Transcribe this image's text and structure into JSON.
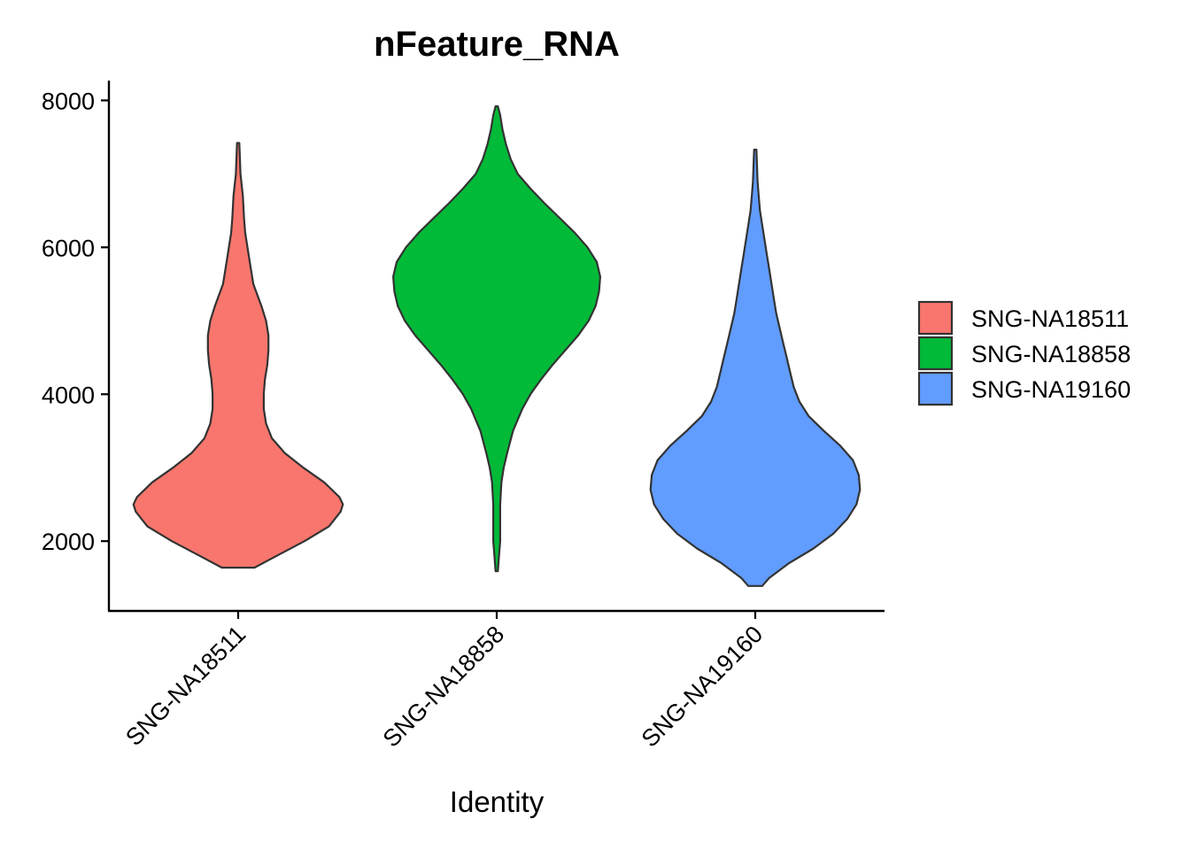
{
  "chart_data": {
    "type": "violin",
    "title": "nFeature_RNA",
    "xlabel": "Identity",
    "ylabel": "",
    "categories": [
      "SNG-NA18511",
      "SNG-NA18858",
      "SNG-NA19160"
    ],
    "y_ticks": [
      2000,
      4000,
      6000,
      8000
    ],
    "y_tick_labels": [
      "2000",
      "4000",
      "6000",
      "8000"
    ],
    "ylim": [
      1050,
      8270
    ],
    "grid": false,
    "legend": {
      "placement": "right",
      "entries": [
        "SNG-NA18511",
        "SNG-NA18858",
        "SNG-NA19160"
      ]
    },
    "series": [
      {
        "category": "SNG-NA18511",
        "color": "#F8766D",
        "min": 1640,
        "max": 7420,
        "density": [
          [
            1640,
            0.14
          ],
          [
            1800,
            0.33
          ],
          [
            2000,
            0.57
          ],
          [
            2200,
            0.78
          ],
          [
            2400,
            0.88
          ],
          [
            2500,
            0.9
          ],
          [
            2600,
            0.87
          ],
          [
            2800,
            0.74
          ],
          [
            3000,
            0.56
          ],
          [
            3200,
            0.4
          ],
          [
            3400,
            0.29
          ],
          [
            3600,
            0.24
          ],
          [
            3800,
            0.22
          ],
          [
            4000,
            0.22
          ],
          [
            4200,
            0.23
          ],
          [
            4400,
            0.25
          ],
          [
            4600,
            0.26
          ],
          [
            4800,
            0.26
          ],
          [
            5000,
            0.24
          ],
          [
            5200,
            0.2
          ],
          [
            5500,
            0.13
          ],
          [
            5800,
            0.1
          ],
          [
            6000,
            0.08
          ],
          [
            6200,
            0.06
          ],
          [
            6400,
            0.05
          ],
          [
            6700,
            0.04
          ],
          [
            7000,
            0.02
          ],
          [
            7200,
            0.015
          ],
          [
            7420,
            0.01
          ]
        ]
      },
      {
        "category": "SNG-NA18858",
        "color": "#00BA38",
        "min": 1590,
        "max": 7920,
        "density": [
          [
            1590,
            0.01
          ],
          [
            1800,
            0.02
          ],
          [
            2000,
            0.03
          ],
          [
            2200,
            0.03
          ],
          [
            2500,
            0.03
          ],
          [
            2800,
            0.04
          ],
          [
            3000,
            0.06
          ],
          [
            3200,
            0.09
          ],
          [
            3500,
            0.14
          ],
          [
            3800,
            0.22
          ],
          [
            4000,
            0.29
          ],
          [
            4200,
            0.38
          ],
          [
            4400,
            0.48
          ],
          [
            4600,
            0.59
          ],
          [
            4800,
            0.7
          ],
          [
            5000,
            0.79
          ],
          [
            5200,
            0.85
          ],
          [
            5400,
            0.88
          ],
          [
            5600,
            0.89
          ],
          [
            5800,
            0.86
          ],
          [
            6000,
            0.78
          ],
          [
            6200,
            0.67
          ],
          [
            6400,
            0.54
          ],
          [
            6600,
            0.41
          ],
          [
            6800,
            0.29
          ],
          [
            7000,
            0.18
          ],
          [
            7200,
            0.12
          ],
          [
            7400,
            0.08
          ],
          [
            7600,
            0.05
          ],
          [
            7800,
            0.03
          ],
          [
            7920,
            0.01
          ]
        ]
      },
      {
        "category": "SNG-NA19160",
        "color": "#619CFF",
        "min": 1390,
        "max": 7330,
        "density": [
          [
            1390,
            0.06
          ],
          [
            1500,
            0.12
          ],
          [
            1700,
            0.29
          ],
          [
            1900,
            0.5
          ],
          [
            2100,
            0.67
          ],
          [
            2300,
            0.79
          ],
          [
            2500,
            0.87
          ],
          [
            2700,
            0.9
          ],
          [
            2900,
            0.89
          ],
          [
            3100,
            0.84
          ],
          [
            3300,
            0.73
          ],
          [
            3500,
            0.59
          ],
          [
            3700,
            0.46
          ],
          [
            3900,
            0.38
          ],
          [
            4100,
            0.33
          ],
          [
            4300,
            0.3
          ],
          [
            4500,
            0.27
          ],
          [
            4700,
            0.24
          ],
          [
            4900,
            0.21
          ],
          [
            5100,
            0.18
          ],
          [
            5300,
            0.16
          ],
          [
            5500,
            0.14
          ],
          [
            5700,
            0.12
          ],
          [
            5900,
            0.1
          ],
          [
            6100,
            0.08
          ],
          [
            6300,
            0.06
          ],
          [
            6500,
            0.04
          ],
          [
            6700,
            0.03
          ],
          [
            6900,
            0.02
          ],
          [
            7100,
            0.015
          ],
          [
            7330,
            0.01
          ]
        ]
      }
    ]
  }
}
